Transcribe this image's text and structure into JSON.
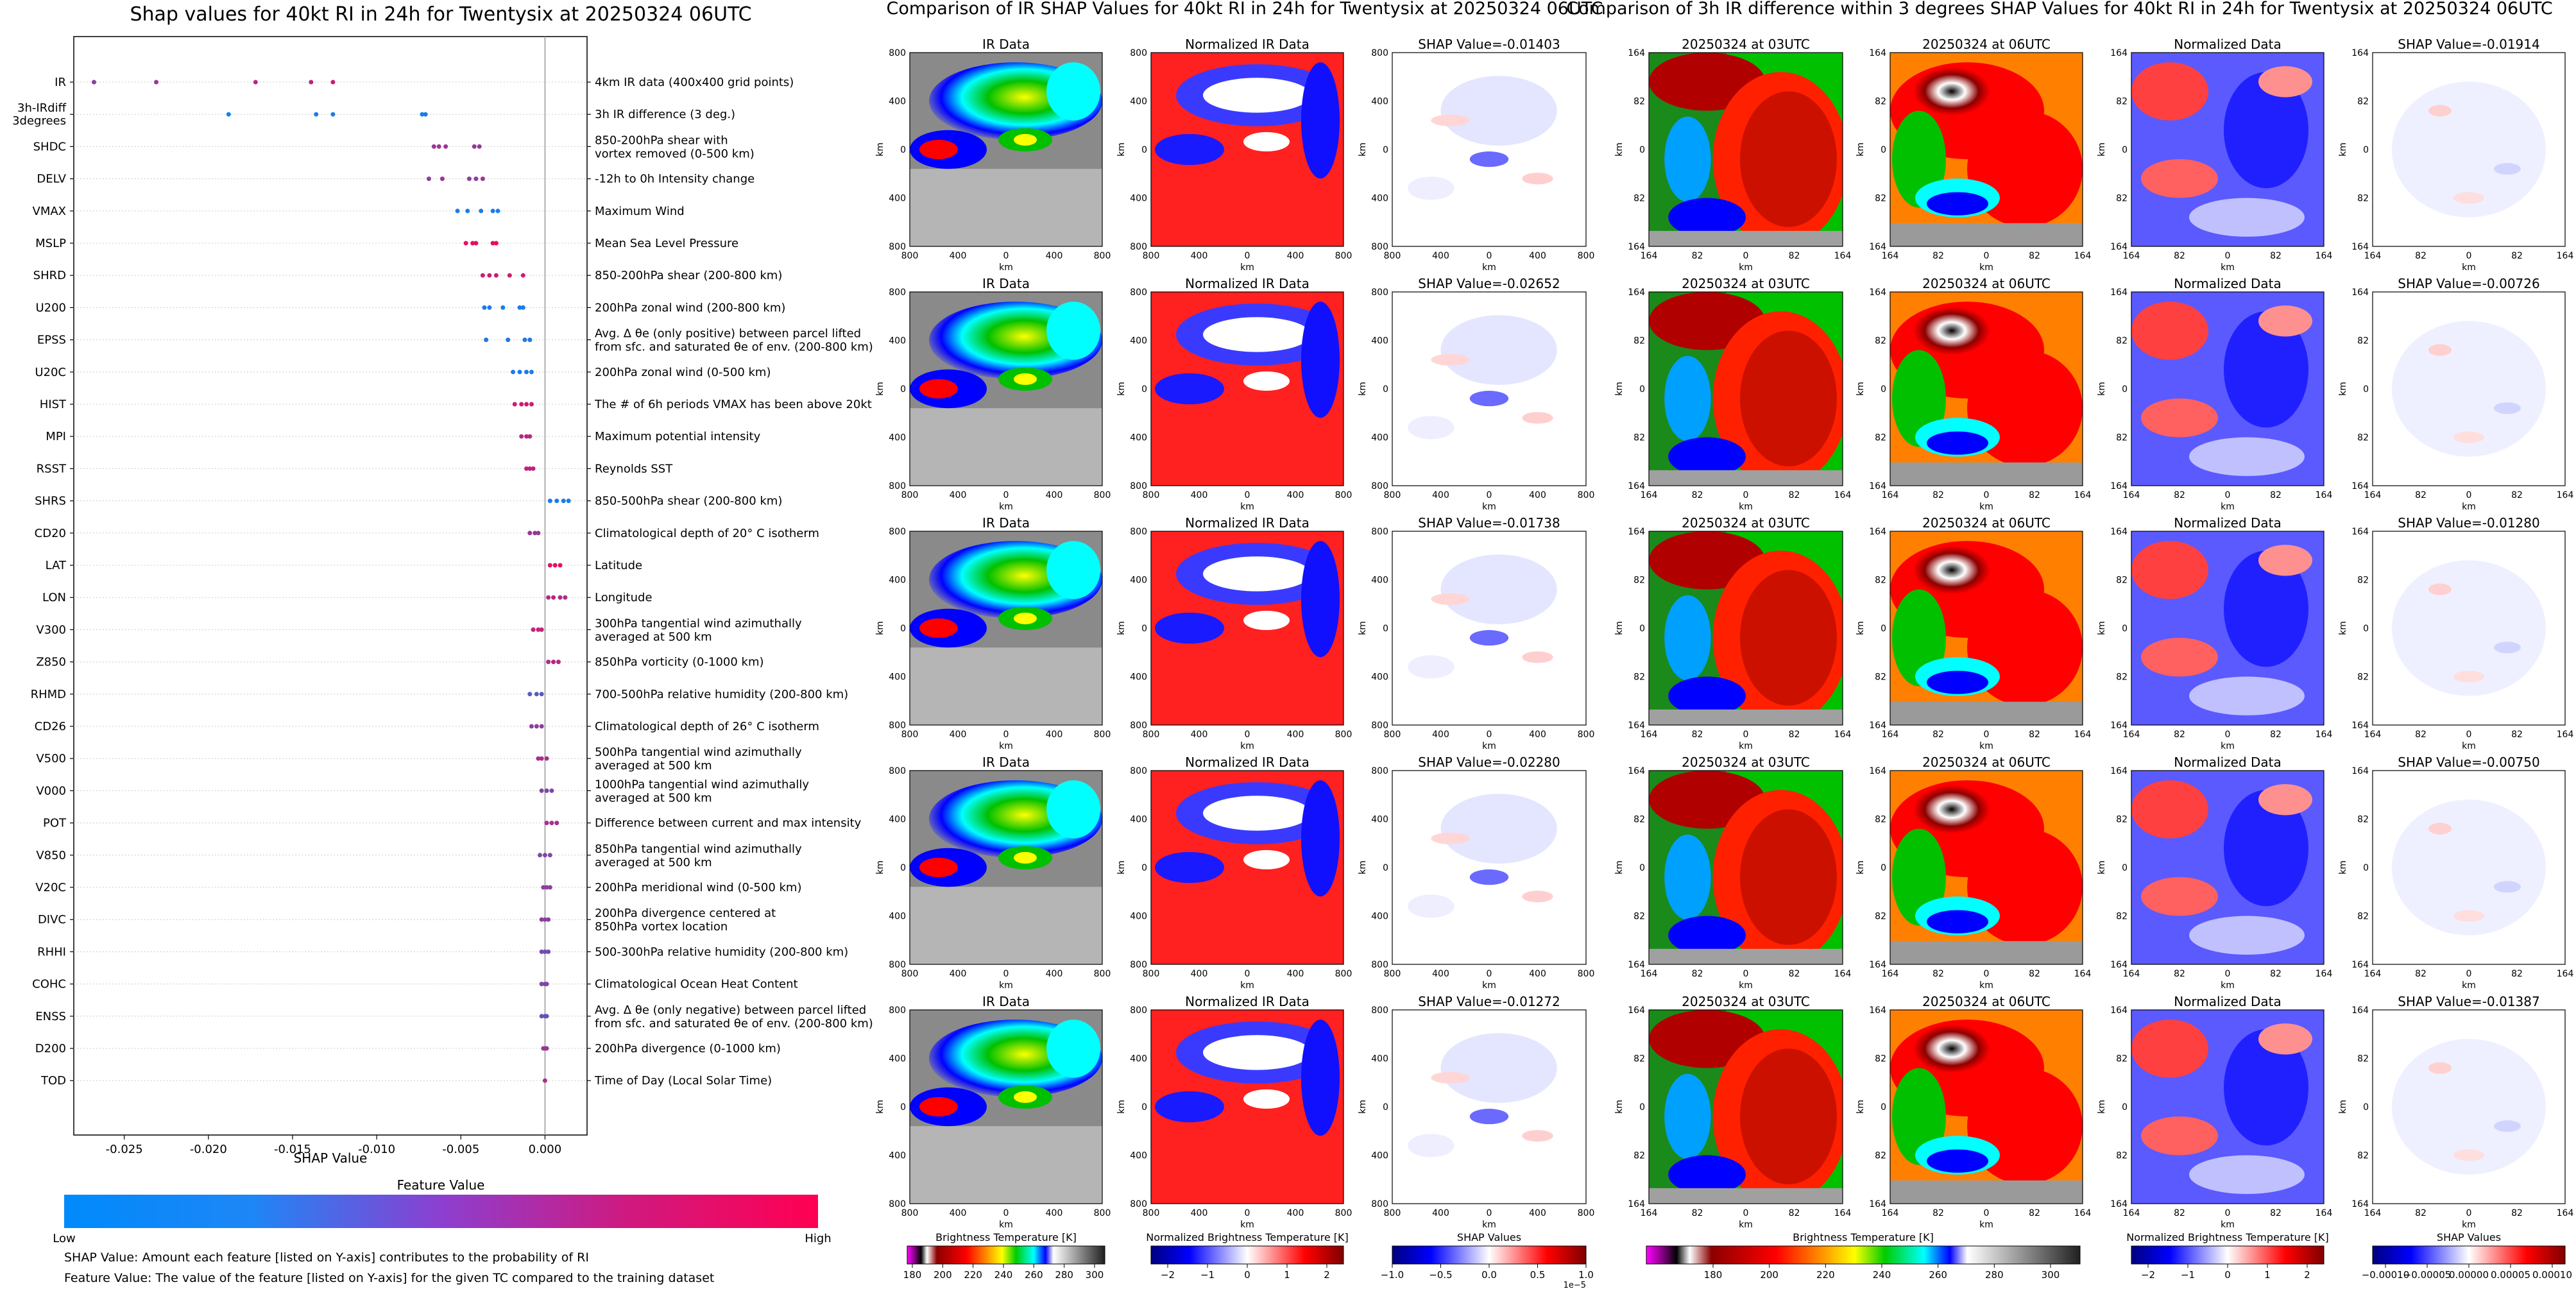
{
  "colors": {
    "feature_low": "#008afb",
    "feature_high": "#ff0052",
    "shap_neg": "#0000cc",
    "shap_pos": "#cc0000"
  },
  "bottom_notes": [
    "SHAP Value: Amount each feature [listed on Y-axis] contributes to the probability of RI",
    "Feature Value: The value of the feature [listed on Y-axis] for the given TC compared to the training dataset"
  ],
  "chart_data": [
    {
      "type": "scatter",
      "title": "Shap values for 40kt RI in 24h for Twentysix at 20250324 06UTC",
      "xlabel": "SHAP Value",
      "xlim": [
        -0.028,
        0.0025
      ],
      "xticks": [
        "-0.025",
        "-0.020",
        "-0.015",
        "-0.010",
        "-0.005",
        "0.000"
      ],
      "xtick_values": [
        -0.025,
        -0.02,
        -0.015,
        -0.01,
        -0.005,
        0.0
      ],
      "colorbar": {
        "title": "Feature Value",
        "low": "Low",
        "high": "High"
      },
      "features": [
        {
          "code": "IR",
          "desc": "4km IR data (400x400 grid points)",
          "points": [
            {
              "x": -0.0268,
              "v": 0.55
            },
            {
              "x": -0.0231,
              "v": 0.6
            },
            {
              "x": -0.0172,
              "v": 0.7
            },
            {
              "x": -0.0139,
              "v": 0.75
            },
            {
              "x": -0.0126,
              "v": 0.8
            }
          ]
        },
        {
          "code": "3h-IRdiff\n3degrees",
          "desc": "3h IR difference (3 deg.)",
          "points": [
            {
              "x": -0.0188,
              "v": 0.05
            },
            {
              "x": -0.0136,
              "v": 0.1
            },
            {
              "x": -0.0126,
              "v": 0.1
            },
            {
              "x": -0.0073,
              "v": 0.1
            },
            {
              "x": -0.0071,
              "v": 0.1
            }
          ]
        },
        {
          "code": "SHDC",
          "desc": "850-200hPa shear with\nvortex removed (0-500 km)",
          "points": [
            {
              "x": -0.0066,
              "v": 0.6
            },
            {
              "x": -0.0063,
              "v": 0.6
            },
            {
              "x": -0.0059,
              "v": 0.6
            },
            {
              "x": -0.0042,
              "v": 0.6
            },
            {
              "x": -0.0039,
              "v": 0.6
            }
          ]
        },
        {
          "code": "DELV",
          "desc": "-12h to 0h Intensity change",
          "points": [
            {
              "x": -0.0069,
              "v": 0.55
            },
            {
              "x": -0.0061,
              "v": 0.6
            },
            {
              "x": -0.0045,
              "v": 0.55
            },
            {
              "x": -0.0041,
              "v": 0.55
            },
            {
              "x": -0.0037,
              "v": 0.6
            }
          ]
        },
        {
          "code": "VMAX",
          "desc": "Maximum Wind",
          "points": [
            {
              "x": -0.0052,
              "v": 0.1
            },
            {
              "x": -0.0046,
              "v": 0.1
            },
            {
              "x": -0.0038,
              "v": 0.1
            },
            {
              "x": -0.0031,
              "v": 0.1
            },
            {
              "x": -0.0028,
              "v": 0.1
            }
          ]
        },
        {
          "code": "MSLP",
          "desc": "Mean Sea Level Pressure",
          "points": [
            {
              "x": -0.0047,
              "v": 0.9
            },
            {
              "x": -0.0043,
              "v": 0.9
            },
            {
              "x": -0.0041,
              "v": 0.9
            },
            {
              "x": -0.0031,
              "v": 0.9
            },
            {
              "x": -0.0029,
              "v": 0.9
            }
          ]
        },
        {
          "code": "SHRD",
          "desc": "850-200hPa shear (200-800 km)",
          "points": [
            {
              "x": -0.0037,
              "v": 0.8
            },
            {
              "x": -0.0033,
              "v": 0.8
            },
            {
              "x": -0.0029,
              "v": 0.8
            },
            {
              "x": -0.0021,
              "v": 0.8
            },
            {
              "x": -0.0013,
              "v": 0.8
            }
          ]
        },
        {
          "code": "U200",
          "desc": "200hPa zonal wind (200-800 km)",
          "points": [
            {
              "x": -0.0036,
              "v": 0.1
            },
            {
              "x": -0.0033,
              "v": 0.1
            },
            {
              "x": -0.0025,
              "v": 0.1
            },
            {
              "x": -0.0015,
              "v": 0.1
            },
            {
              "x": -0.0013,
              "v": 0.1
            }
          ]
        },
        {
          "code": "EPSS",
          "desc": "Avg. Δ θe (only positive) between parcel lifted\nfrom sfc. and saturated θe of env. (200-800 km)",
          "points": [
            {
              "x": -0.0035,
              "v": 0.15
            },
            {
              "x": -0.0022,
              "v": 0.15
            },
            {
              "x": -0.0012,
              "v": 0.15
            },
            {
              "x": -0.0009,
              "v": 0.15
            }
          ]
        },
        {
          "code": "U20C",
          "desc": "200hPa zonal wind (0-500 km)",
          "points": [
            {
              "x": -0.0019,
              "v": 0.1
            },
            {
              "x": -0.0015,
              "v": 0.1
            },
            {
              "x": -0.0011,
              "v": 0.1
            },
            {
              "x": -0.0008,
              "v": 0.1
            }
          ]
        },
        {
          "code": "HIST",
          "desc": "The # of 6h periods VMAX has been above 20kt",
          "points": [
            {
              "x": -0.0018,
              "v": 0.8
            },
            {
              "x": -0.0014,
              "v": 0.8
            },
            {
              "x": -0.0011,
              "v": 0.8
            },
            {
              "x": -0.0008,
              "v": 0.8
            }
          ]
        },
        {
          "code": "MPI",
          "desc": "Maximum potential intensity",
          "points": [
            {
              "x": -0.0014,
              "v": 0.7
            },
            {
              "x": -0.0011,
              "v": 0.7
            },
            {
              "x": -0.0009,
              "v": 0.7
            }
          ]
        },
        {
          "code": "RSST",
          "desc": "Reynolds SST",
          "points": [
            {
              "x": -0.0011,
              "v": 0.75
            },
            {
              "x": -0.0009,
              "v": 0.75
            },
            {
              "x": -0.0007,
              "v": 0.75
            }
          ]
        },
        {
          "code": "SHRS",
          "desc": "850-500hPa shear (200-800 km)",
          "points": [
            {
              "x": 0.0003,
              "v": 0.1
            },
            {
              "x": 0.0007,
              "v": 0.1
            },
            {
              "x": 0.0011,
              "v": 0.1
            },
            {
              "x": 0.0014,
              "v": 0.1
            }
          ]
        },
        {
          "code": "CD20",
          "desc": "Climatological depth of 20° C isotherm",
          "points": [
            {
              "x": -0.0009,
              "v": 0.6
            },
            {
              "x": -0.0006,
              "v": 0.6
            },
            {
              "x": -0.0004,
              "v": 0.6
            }
          ]
        },
        {
          "code": "LAT",
          "desc": "Latitude",
          "points": [
            {
              "x": 0.0003,
              "v": 0.9
            },
            {
              "x": 0.0006,
              "v": 0.9
            },
            {
              "x": 0.0009,
              "v": 0.9
            }
          ]
        },
        {
          "code": "LON",
          "desc": "Longitude",
          "points": [
            {
              "x": 0.0002,
              "v": 0.7
            },
            {
              "x": 0.0005,
              "v": 0.7
            },
            {
              "x": 0.0009,
              "v": 0.7
            },
            {
              "x": 0.0012,
              "v": 0.7
            }
          ]
        },
        {
          "code": "V300",
          "desc": "300hPa tangential wind azimuthally\naveraged at 500 km",
          "points": [
            {
              "x": -0.0007,
              "v": 0.75
            },
            {
              "x": -0.0004,
              "v": 0.75
            },
            {
              "x": -0.0002,
              "v": 0.75
            }
          ]
        },
        {
          "code": "Z850",
          "desc": "850hPa vorticity (0-1000 km)",
          "points": [
            {
              "x": 0.0002,
              "v": 0.7
            },
            {
              "x": 0.0005,
              "v": 0.7
            },
            {
              "x": 0.0008,
              "v": 0.7
            }
          ]
        },
        {
          "code": "RHMD",
          "desc": "700-500hPa relative humidity (200-800 km)",
          "points": [
            {
              "x": -0.0009,
              "v": 0.35
            },
            {
              "x": -0.0005,
              "v": 0.35
            },
            {
              "x": -0.0002,
              "v": 0.35
            }
          ]
        },
        {
          "code": "CD26",
          "desc": "Climatological depth of 26° C isotherm",
          "points": [
            {
              "x": -0.0008,
              "v": 0.55
            },
            {
              "x": -0.0005,
              "v": 0.55
            },
            {
              "x": -0.0002,
              "v": 0.55
            }
          ]
        },
        {
          "code": "V500",
          "desc": "500hPa tangential wind azimuthally\naveraged at 500 km",
          "points": [
            {
              "x": -0.0004,
              "v": 0.65
            },
            {
              "x": -0.0002,
              "v": 0.65
            },
            {
              "x": 0.0001,
              "v": 0.65
            }
          ]
        },
        {
          "code": "V000",
          "desc": "1000hPa tangential wind azimuthally\naveraged at 500 km",
          "points": [
            {
              "x": -0.0002,
              "v": 0.5
            },
            {
              "x": 0.0001,
              "v": 0.5
            },
            {
              "x": 0.0004,
              "v": 0.5
            }
          ]
        },
        {
          "code": "POT",
          "desc": "Difference between current and max intensity",
          "points": [
            {
              "x": 0.0001,
              "v": 0.65
            },
            {
              "x": 0.0004,
              "v": 0.65
            },
            {
              "x": 0.0007,
              "v": 0.65
            }
          ]
        },
        {
          "code": "V850",
          "desc": "850hPa tangential wind azimuthally\naveraged at 500 km",
          "points": [
            {
              "x": -0.0003,
              "v": 0.5
            },
            {
              "x": 0.0,
              "v": 0.5
            },
            {
              "x": 0.0003,
              "v": 0.5
            }
          ]
        },
        {
          "code": "V20C",
          "desc": "200hPa meridional wind (0-500 km)",
          "points": [
            {
              "x": -0.0001,
              "v": 0.55
            },
            {
              "x": 0.0001,
              "v": 0.55
            },
            {
              "x": 0.0003,
              "v": 0.55
            }
          ]
        },
        {
          "code": "DIVC",
          "desc": "200hPa divergence centered at\n850hPa vortex location",
          "points": [
            {
              "x": -0.0002,
              "v": 0.55
            },
            {
              "x": 0.0,
              "v": 0.55
            },
            {
              "x": 0.0002,
              "v": 0.55
            }
          ]
        },
        {
          "code": "RHHI",
          "desc": "500-300hPa relative humidity (200-800 km)",
          "points": [
            {
              "x": -0.0002,
              "v": 0.45
            },
            {
              "x": 0.0,
              "v": 0.45
            },
            {
              "x": 0.0002,
              "v": 0.45
            }
          ]
        },
        {
          "code": "COHC",
          "desc": "Climatological Ocean Heat Content",
          "points": [
            {
              "x": -0.0002,
              "v": 0.5
            },
            {
              "x": 0.0,
              "v": 0.5
            },
            {
              "x": 0.0001,
              "v": 0.5
            }
          ]
        },
        {
          "code": "ENSS",
          "desc": "Avg. Δ θe (only negative) between parcel lifted\nfrom sfc. and saturated θe of env. (200-800 km)",
          "points": [
            {
              "x": -0.0002,
              "v": 0.4
            },
            {
              "x": 0.0,
              "v": 0.4
            },
            {
              "x": 0.0001,
              "v": 0.4
            }
          ]
        },
        {
          "code": "D200",
          "desc": "200hPa divergence (0-1000 km)",
          "points": [
            {
              "x": -0.0001,
              "v": 0.6
            },
            {
              "x": 0.0,
              "v": 0.6
            },
            {
              "x": 0.0001,
              "v": 0.6
            }
          ]
        },
        {
          "code": "TOD",
          "desc": "Time of Day (Local Solar Time)",
          "points": [
            {
              "x": 0.0,
              "v": 0.65
            }
          ]
        }
      ]
    },
    {
      "type": "heatmap",
      "title": "Comparison of IR SHAP Values for 40kt RI in 24h for Twentysix at 20250324 06UTC",
      "columns": [
        "IR Data",
        "Normalized IR Data"
      ],
      "shap_titles": [
        "SHAP Value=-0.01403",
        "SHAP Value=-0.02652",
        "SHAP Value=-0.01738",
        "SHAP Value=-0.02280",
        "SHAP Value=-0.01272"
      ],
      "axis_label": "km",
      "ticks": [
        "800",
        "400",
        "0",
        "400",
        "800"
      ],
      "colorbars": [
        {
          "label": "Brightness Temperature [K]",
          "ticks": [
            "180",
            "200",
            "220",
            "240",
            "260",
            "280",
            "300"
          ]
        },
        {
          "label": "Normalized Brightness Temperature [K]",
          "ticks": [
            "−2",
            "−1",
            "0",
            "1",
            "2"
          ]
        },
        {
          "label": "SHAP Values",
          "ticks": [
            "−1.0",
            "−0.5",
            "0.0",
            "0.5",
            "1.0"
          ],
          "offset": "1e−5"
        }
      ]
    },
    {
      "type": "heatmap",
      "title": "Comparison of 3h IR difference within 3 degrees SHAP Values for 40kt RI in 24h for Twentysix at 20250324 06UTC",
      "columns": [
        "20250324 at 03UTC",
        "20250324 at 06UTC",
        "Normalized Data"
      ],
      "shap_titles": [
        "SHAP Value=-0.01914",
        "SHAP Value=-0.00726",
        "SHAP Value=-0.01280",
        "SHAP Value=-0.00750",
        "SHAP Value=-0.01387"
      ],
      "axis_label": "km",
      "ticks": [
        "164",
        "82",
        "0",
        "82",
        "164"
      ],
      "colorbars": [
        {
          "label": "Brightness Temperature [K]",
          "ticks": [
            "180",
            "200",
            "220",
            "240",
            "260",
            "280",
            "300"
          ]
        },
        {
          "label": "Normalized Brightness Temperature [K]",
          "ticks": [
            "−2",
            "−1",
            "0",
            "1",
            "2"
          ]
        },
        {
          "label": "SHAP Values",
          "ticks": [
            "−0.00010",
            "−0.00005",
            "0.00000",
            "0.00005",
            "0.00010"
          ]
        }
      ]
    }
  ]
}
